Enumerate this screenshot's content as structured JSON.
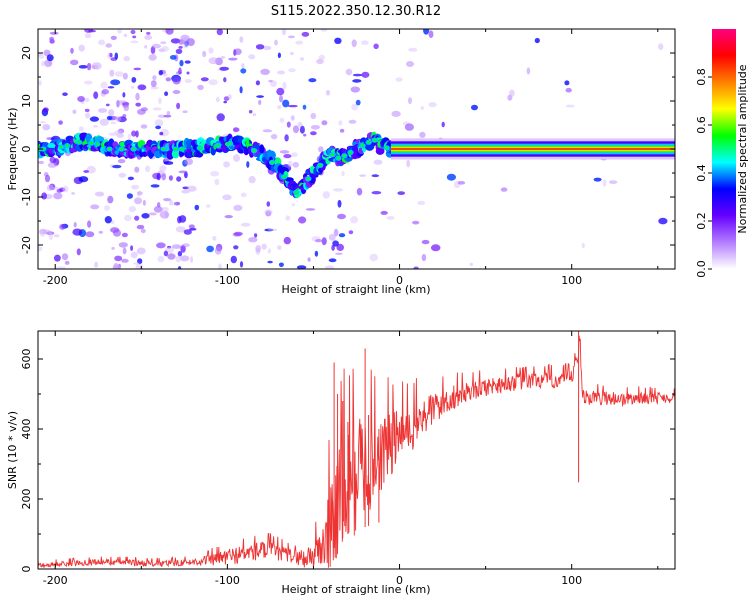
{
  "title": "S115.2022.350.12.30.R12",
  "chart_data": [
    {
      "type": "heatmap",
      "xlabel": "Height of straight line (km)",
      "ylabel": "Frequency (Hz)",
      "xlim": [
        -210,
        160
      ],
      "ylim": [
        -25,
        25
      ],
      "x_ticks": [
        -200,
        -100,
        0,
        100
      ],
      "y_ticks": [
        -20,
        -10,
        0,
        10,
        20
      ],
      "grid": false,
      "colorbar": {
        "label": "Normalized spectral amplitude",
        "range": [
          0,
          1
        ],
        "ticks": [
          "0.0",
          "0.2",
          "0.4",
          "0.6",
          "0.8"
        ],
        "colors": [
          "#ffffff",
          "#b37dff",
          "#6600ff",
          "#0000ff",
          "#00ffff",
          "#00ff00",
          "#ffff00",
          "#ff8000",
          "#ff0000",
          "#ff0080"
        ]
      },
      "ridge": {
        "description_free": true,
        "x": [
          -205,
          -195,
          -185,
          -175,
          -170,
          -160,
          -150,
          -140,
          -130,
          -120,
          -110,
          -100,
          -95,
          -90,
          -80,
          -70,
          -65,
          -60,
          -55,
          -50,
          -45,
          -40,
          -35,
          -30,
          -25,
          -20,
          -15,
          -10,
          -5,
          0,
          20,
          60,
          100,
          160
        ],
        "y": [
          0,
          0.5,
          1.5,
          1,
          0,
          0,
          0,
          0,
          0,
          0,
          0.5,
          1,
          1.5,
          0.5,
          -1,
          -4,
          -7,
          -9,
          -7,
          -5,
          -3,
          -1,
          -2,
          -1,
          0,
          1,
          2,
          0.5,
          0,
          0,
          0,
          0,
          0,
          0
        ]
      }
    },
    {
      "type": "line",
      "xlabel": "Height of straight line (km)",
      "ylabel": "SNR (10 * v/v)",
      "xlim": [
        -210,
        160
      ],
      "ylim": [
        0,
        680
      ],
      "x_ticks": [
        -200,
        -100,
        0,
        100
      ],
      "y_ticks": [
        0,
        200,
        400,
        600
      ],
      "grid": false,
      "color": "#ee3333",
      "trend": {
        "x": [
          -210,
          -180,
          -160,
          -140,
          -120,
          -105,
          -95,
          -85,
          -75,
          -65,
          -55,
          -45,
          -40,
          -35,
          -30,
          -25,
          -20,
          -15,
          -10,
          -5,
          0,
          5,
          10,
          20,
          30,
          40,
          50,
          60,
          70,
          80,
          90,
          100,
          103,
          105,
          106,
          110,
          120,
          130,
          140,
          150,
          160
        ],
        "y": [
          10,
          20,
          20,
          15,
          20,
          30,
          40,
          50,
          55,
          40,
          30,
          60,
          120,
          200,
          250,
          280,
          300,
          320,
          340,
          360,
          380,
          400,
          420,
          460,
          490,
          510,
          520,
          530,
          535,
          540,
          540,
          545,
          600,
          640,
          500,
          490,
          490,
          485,
          490,
          490,
          490
        ]
      },
      "noise": {
        "x": [
          -210,
          -120,
          -100,
          -80,
          -60,
          -45,
          -40,
          -30,
          -20,
          -10,
          0,
          20,
          40,
          60,
          100,
          160
        ],
        "amp": [
          8,
          10,
          25,
          30,
          20,
          60,
          180,
          200,
          160,
          120,
          90,
          50,
          30,
          25,
          25,
          15
        ]
      },
      "spikes": [
        {
          "x": -38,
          "y": 590
        },
        {
          "x": -36,
          "y": 500
        },
        {
          "x": -33,
          "y": 480
        },
        {
          "x": -30,
          "y": 420
        },
        {
          "x": -20,
          "y": 630
        },
        {
          "x": -18,
          "y": 440
        },
        {
          "x": -12,
          "y": 400
        },
        {
          "x": 104,
          "y": 680
        }
      ]
    }
  ]
}
